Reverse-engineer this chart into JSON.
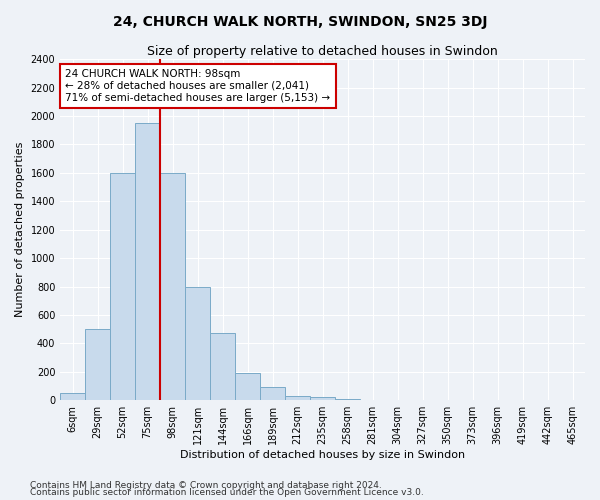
{
  "title": "24, CHURCH WALK NORTH, SWINDON, SN25 3DJ",
  "subtitle": "Size of property relative to detached houses in Swindon",
  "xlabel": "Distribution of detached houses by size in Swindon",
  "ylabel": "Number of detached properties",
  "categories": [
    "6sqm",
    "29sqm",
    "52sqm",
    "75sqm",
    "98sqm",
    "121sqm",
    "144sqm",
    "166sqm",
    "189sqm",
    "212sqm",
    "235sqm",
    "258sqm",
    "281sqm",
    "304sqm",
    "327sqm",
    "350sqm",
    "373sqm",
    "396sqm",
    "419sqm",
    "442sqm",
    "465sqm"
  ],
  "values": [
    50,
    500,
    1600,
    1950,
    1600,
    800,
    470,
    190,
    90,
    30,
    20,
    10,
    0,
    0,
    0,
    0,
    0,
    0,
    0,
    0,
    0
  ],
  "bar_color": "#c8daec",
  "bar_edge_color": "#7aaac8",
  "red_line_index": 4,
  "annotation_text": "24 CHURCH WALK NORTH: 98sqm\n← 28% of detached houses are smaller (2,041)\n71% of semi-detached houses are larger (5,153) →",
  "annotation_box_color": "#ffffff",
  "annotation_box_edge": "#cc0000",
  "red_line_color": "#cc0000",
  "ylim": [
    0,
    2400
  ],
  "yticks": [
    0,
    200,
    400,
    600,
    800,
    1000,
    1200,
    1400,
    1600,
    1800,
    2000,
    2200,
    2400
  ],
  "footer1": "Contains HM Land Registry data © Crown copyright and database right 2024.",
  "footer2": "Contains public sector information licensed under the Open Government Licence v3.0.",
  "fig_bg_color": "#eef2f7",
  "plot_bg_color": "#eef2f7",
  "grid_color": "#ffffff",
  "title_fontsize": 10,
  "subtitle_fontsize": 9,
  "axis_label_fontsize": 8,
  "tick_fontsize": 7,
  "annotation_fontsize": 7.5,
  "footer_fontsize": 6.5
}
